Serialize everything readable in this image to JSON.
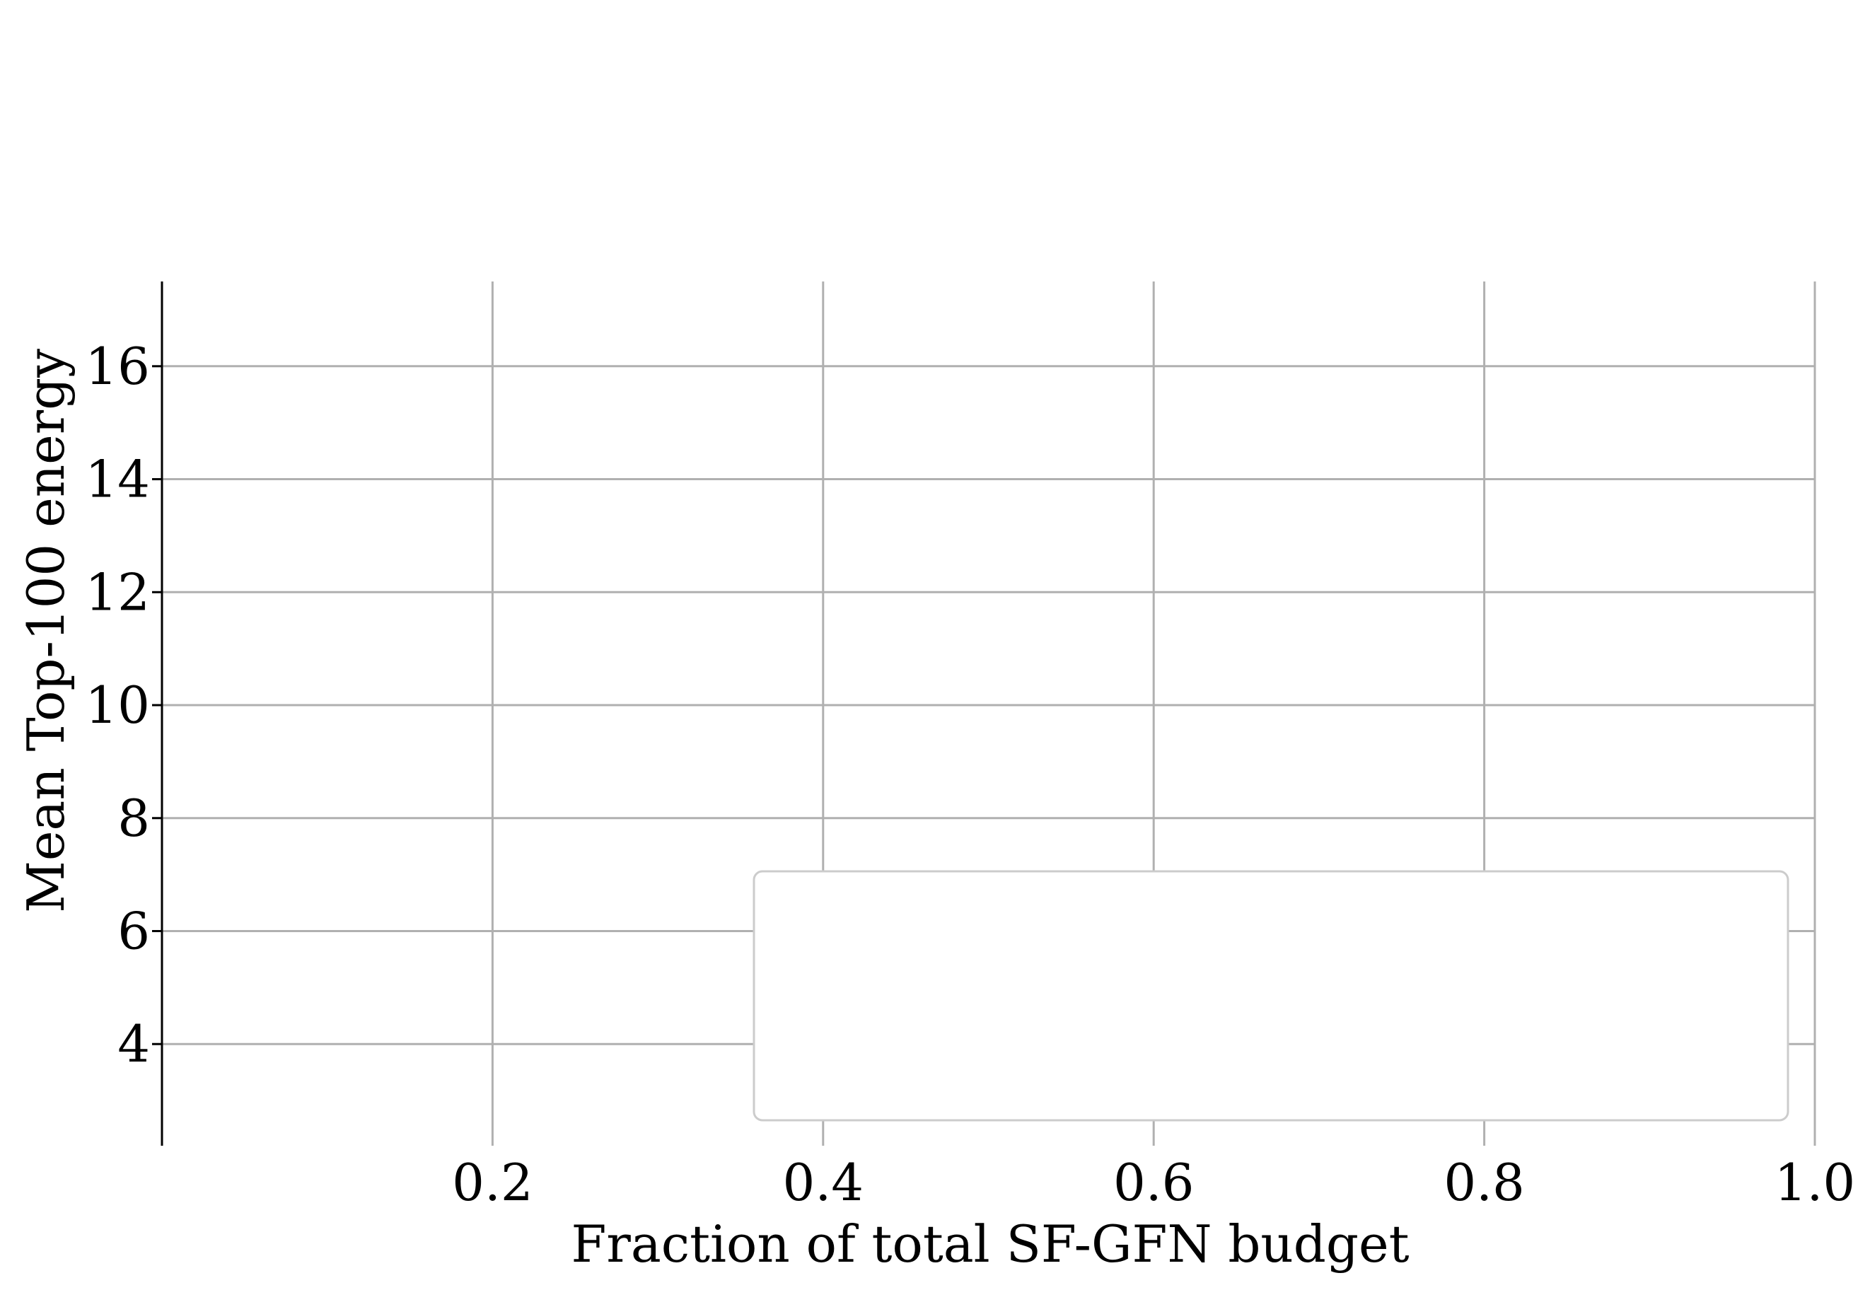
{
  "chart_data": {
    "type": "line",
    "title": "",
    "xlabel": "Fraction of total SF-GFN budget",
    "ylabel": "Mean Top-100 energy",
    "xlim": [
      0.0,
      1.0
    ],
    "ylim": [
      2.2,
      17.5
    ],
    "x_ticks": [
      0.2,
      0.4,
      0.6,
      0.8,
      1.0
    ],
    "x_tick_labels": [
      "0.2",
      "0.4",
      "0.6",
      "0.8",
      "1.0"
    ],
    "y_ticks": [
      4,
      6,
      8,
      10,
      12,
      14,
      16
    ],
    "y_tick_labels": [
      "4",
      "6",
      "8",
      "10",
      "12",
      "14",
      "16"
    ],
    "grid": true,
    "legend": {
      "placement": "lower-right",
      "entries": []
    },
    "series": [],
    "colors": {
      "grid": "#b0b0b0",
      "axis": "#000000",
      "legend_border": "#cccccc"
    }
  }
}
